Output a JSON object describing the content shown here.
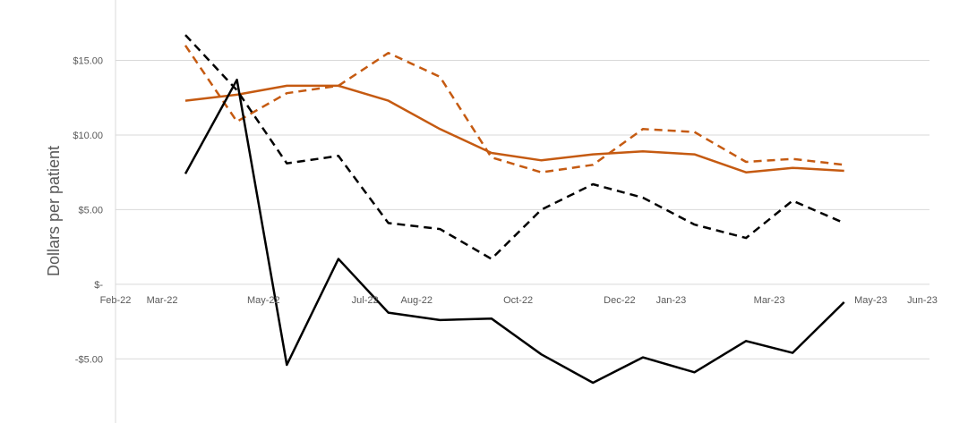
{
  "chart_data": {
    "type": "line",
    "title": "",
    "xlabel": "",
    "ylabel": "Dollars per patient",
    "ylim": [
      -8.5,
      19
    ],
    "xlim": [
      "2022-02-01",
      "2023-06-01"
    ],
    "grid": "horizontal",
    "legend": "none",
    "x_ticks": [
      {
        "date": "2022-02-01",
        "label": "Feb-22"
      },
      {
        "date": "2022-03-01",
        "label": "Mar-22"
      },
      {
        "date": "2022-05-01",
        "label": "May-22"
      },
      {
        "date": "2022-07-01",
        "label": "Jul-22"
      },
      {
        "date": "2022-08-01",
        "label": "Aug-22"
      },
      {
        "date": "2022-10-01",
        "label": "Oct-22"
      },
      {
        "date": "2022-12-01",
        "label": "Dec-22"
      },
      {
        "date": "2023-01-01",
        "label": "Jan-23"
      },
      {
        "date": "2023-03-01",
        "label": "Mar-23"
      },
      {
        "date": "2023-05-01",
        "label": "May-23"
      },
      {
        "date": "2023-06-01",
        "label": "Jun-23"
      }
    ],
    "y_ticks": [
      {
        "value": 15,
        "label": "$15.00"
      },
      {
        "value": 10,
        "label": "$10.00"
      },
      {
        "value": 5,
        "label": "$5.00"
      },
      {
        "value": 0,
        "label": "$-"
      },
      {
        "value": -5,
        "label": "-$5.00"
      }
    ],
    "x": [
      "2022-03-15",
      "2022-04-15",
      "2022-05-15",
      "2022-06-15",
      "2022-07-15",
      "2022-08-15",
      "2022-09-15",
      "2022-10-15",
      "2022-11-15",
      "2022-12-15",
      "2023-01-15",
      "2023-02-15",
      "2023-03-15",
      "2023-04-15",
      "2023-05-15"
    ],
    "series": [
      {
        "color": "#c55a11",
        "dash": "solid",
        "values": [
          12.3,
          12.7,
          13.3,
          13.3,
          12.3,
          10.4,
          8.8,
          8.3,
          8.7,
          8.9,
          8.7,
          7.5,
          7.8,
          7.6,
          null
        ]
      },
      {
        "color": "#c55a11",
        "dash": "dashed",
        "values": [
          16.0,
          10.9,
          12.8,
          13.3,
          15.5,
          13.9,
          8.5,
          7.5,
          8.0,
          10.4,
          10.2,
          8.2,
          8.4,
          8.0,
          null
        ]
      },
      {
        "color": "#000000",
        "dash": "dashed",
        "values": [
          16.7,
          13.0,
          8.1,
          8.6,
          4.1,
          3.7,
          1.7,
          5.0,
          6.7,
          5.8,
          4.0,
          3.1,
          5.6,
          4.1,
          null
        ]
      },
      {
        "color": "#000000",
        "dash": "solid",
        "values": [
          7.4,
          13.7,
          -5.4,
          1.7,
          -1.9,
          -2.4,
          -2.3,
          -4.7,
          -6.6,
          -4.9,
          -5.9,
          -3.8,
          -4.6,
          -1.2,
          null
        ]
      }
    ]
  }
}
